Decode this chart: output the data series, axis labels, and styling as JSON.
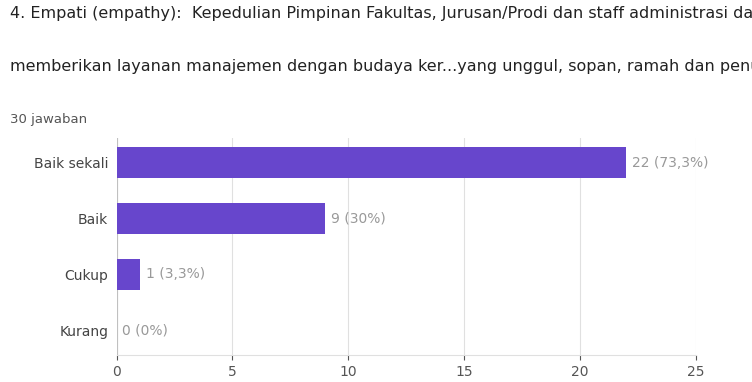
{
  "title_line1": "4. Empati (empathy):  Kepedulian Pimpinan Fakultas, Jurusan/Prodi dan staff administrasi dalam",
  "title_line2": "memberikan layanan manajemen dengan budaya ker...yang unggul, sopan, ramah dan penuh perhatian.",
  "subtitle": "30 jawaban",
  "categories": [
    "Baik sekali",
    "Baik",
    "Cukup",
    "Kurang"
  ],
  "values": [
    22,
    9,
    1,
    0
  ],
  "labels": [
    "22 (73,3%)",
    "9 (30%)",
    "1 (3,3%)",
    "0 (0%)"
  ],
  "bar_color": "#6746cc",
  "background_color": "#ffffff",
  "xlim": [
    0,
    25
  ],
  "xticks": [
    0,
    5,
    10,
    15,
    20,
    25
  ],
  "title_fontsize": 11.5,
  "subtitle_fontsize": 9.5,
  "label_fontsize": 10,
  "tick_fontsize": 10,
  "bar_height": 0.55,
  "grid_color": "#e0e0e0",
  "label_color": "#999999",
  "text_color": "#222222",
  "subtitle_color": "#555555"
}
